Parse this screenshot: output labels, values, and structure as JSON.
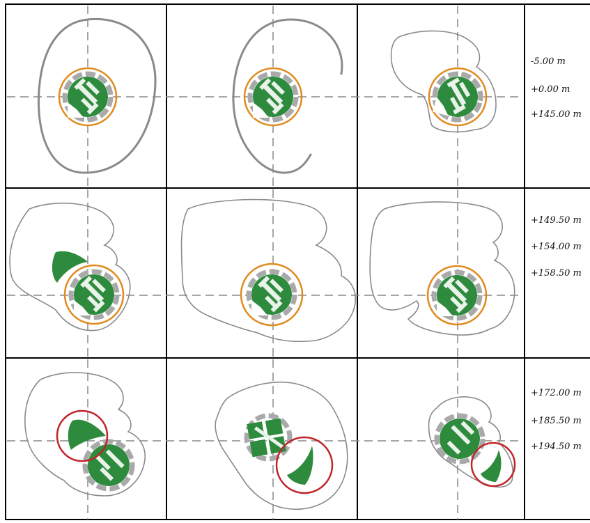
{
  "rows": [
    {
      "levels": [
        "-5.00 m",
        "+0.00 m",
        "+145.00 m"
      ]
    },
    {
      "levels": [
        "+149.50 m",
        "+154.00 m",
        "+158.50 m"
      ]
    },
    {
      "levels": [
        "+172.00 m",
        "+185.50 m",
        "+194.50 m"
      ]
    }
  ],
  "colors": {
    "core_green": "#2e8b3e",
    "core_ring": "#e08a1e",
    "highlight_ring": "#c0242b",
    "outline": "#8a8a8a",
    "axis": "#888888"
  }
}
